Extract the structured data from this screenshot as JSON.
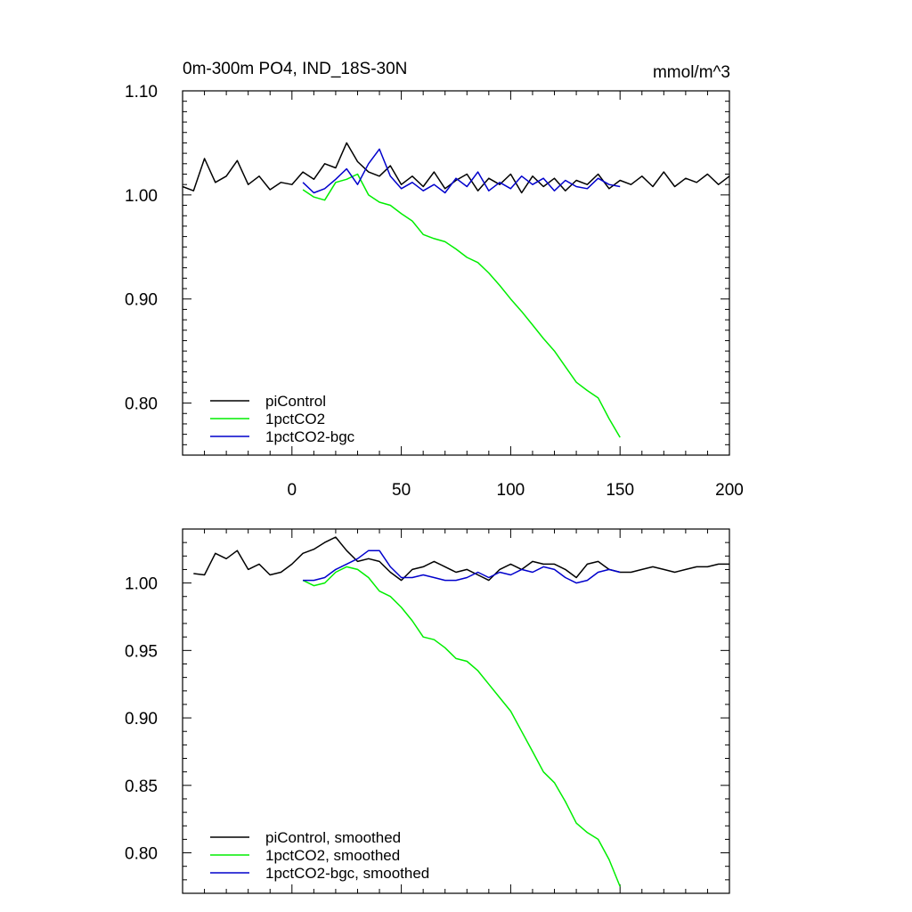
{
  "chart_data": [
    {
      "type": "line",
      "title": "0m-300m PO4, IND_18S-30N",
      "units": "mmol/m^3",
      "xlim": [
        -50,
        200
      ],
      "ylim": [
        0.75,
        1.1
      ],
      "xticks": [
        "0",
        "50",
        "100",
        "150",
        "200"
      ],
      "yticks": [
        "1.10",
        "1.00",
        "0.90",
        "0.80"
      ],
      "legend_position": "bottom-left",
      "series": [
        {
          "name": "piControl",
          "color": "#000000",
          "x": [
            -50,
            -45,
            -40,
            -35,
            -30,
            -25,
            -20,
            -15,
            -10,
            -5,
            0,
            5,
            10,
            15,
            20,
            25,
            30,
            35,
            40,
            45,
            50,
            55,
            60,
            65,
            70,
            75,
            80,
            85,
            90,
            95,
            100,
            105,
            110,
            115,
            120,
            125,
            130,
            135,
            140,
            145,
            150,
            155,
            160,
            165,
            170,
            175,
            180,
            185,
            190,
            195,
            200
          ],
          "values": [
            1.008,
            1.004,
            1.035,
            1.012,
            1.018,
            1.033,
            1.01,
            1.018,
            1.005,
            1.012,
            1.01,
            1.022,
            1.015,
            1.03,
            1.026,
            1.05,
            1.032,
            1.022,
            1.018,
            1.028,
            1.01,
            1.018,
            1.008,
            1.022,
            1.006,
            1.014,
            1.02,
            1.004,
            1.016,
            1.01,
            1.02,
            1.002,
            1.018,
            1.008,
            1.016,
            1.004,
            1.014,
            1.01,
            1.02,
            1.006,
            1.014,
            1.01,
            1.018,
            1.008,
            1.022,
            1.008,
            1.016,
            1.012,
            1.02,
            1.01,
            1.018
          ]
        },
        {
          "name": "1pctCO2",
          "color": "#00ee00",
          "x": [
            5,
            10,
            15,
            20,
            25,
            30,
            35,
            40,
            45,
            50,
            55,
            60,
            65,
            70,
            75,
            80,
            85,
            90,
            95,
            100,
            105,
            110,
            115,
            120,
            125,
            130,
            135,
            140,
            145,
            150
          ],
          "values": [
            1.005,
            0.998,
            0.995,
            1.012,
            1.015,
            1.02,
            1.0,
            0.993,
            0.99,
            0.982,
            0.975,
            0.962,
            0.958,
            0.955,
            0.948,
            0.94,
            0.935,
            0.925,
            0.913,
            0.9,
            0.888,
            0.875,
            0.862,
            0.85,
            0.835,
            0.82,
            0.812,
            0.805,
            0.785,
            0.767
          ]
        },
        {
          "name": "1pctCO2-bgc",
          "color": "#0000cc",
          "x": [
            5,
            10,
            15,
            20,
            25,
            30,
            35,
            40,
            45,
            50,
            55,
            60,
            65,
            70,
            75,
            80,
            85,
            90,
            95,
            100,
            105,
            110,
            115,
            120,
            125,
            130,
            135,
            140,
            145,
            150
          ],
          "values": [
            1.012,
            1.002,
            1.006,
            1.015,
            1.025,
            1.01,
            1.03,
            1.044,
            1.018,
            1.006,
            1.012,
            1.004,
            1.01,
            1.002,
            1.016,
            1.008,
            1.022,
            1.004,
            1.012,
            1.006,
            1.018,
            1.01,
            1.016,
            1.004,
            1.014,
            1.008,
            1.006,
            1.016,
            1.01,
            1.008
          ]
        }
      ]
    },
    {
      "type": "line",
      "xlim": [
        -50,
        200
      ],
      "ylim": [
        0.77,
        1.04
      ],
      "yticks": [
        "1.00",
        "0.95",
        "0.90",
        "0.85",
        "0.80"
      ],
      "legend_position": "bottom-left",
      "series": [
        {
          "name": "piControl, smoothed",
          "color": "#000000",
          "x": [
            -45,
            -40,
            -35,
            -30,
            -25,
            -20,
            -15,
            -10,
            -5,
            0,
            5,
            10,
            15,
            20,
            25,
            30,
            35,
            40,
            45,
            50,
            55,
            60,
            65,
            70,
            75,
            80,
            85,
            90,
            95,
            100,
            105,
            110,
            115,
            120,
            125,
            130,
            135,
            140,
            145,
            150,
            155,
            160,
            165,
            170,
            175,
            180,
            185,
            190,
            195,
            200
          ],
          "values": [
            1.007,
            1.006,
            1.022,
            1.018,
            1.024,
            1.01,
            1.014,
            1.006,
            1.008,
            1.014,
            1.022,
            1.025,
            1.03,
            1.034,
            1.024,
            1.016,
            1.018,
            1.016,
            1.008,
            1.002,
            1.01,
            1.012,
            1.016,
            1.012,
            1.008,
            1.01,
            1.006,
            1.002,
            1.01,
            1.014,
            1.01,
            1.016,
            1.014,
            1.014,
            1.01,
            1.004,
            1.014,
            1.016,
            1.01,
            1.008,
            1.008,
            1.01,
            1.012,
            1.01,
            1.008,
            1.01,
            1.012,
            1.012,
            1.014,
            1.014
          ]
        },
        {
          "name": "1pctCO2, smoothed",
          "color": "#00ee00",
          "x": [
            5,
            10,
            15,
            20,
            25,
            30,
            35,
            40,
            45,
            50,
            55,
            60,
            65,
            70,
            75,
            80,
            85,
            90,
            95,
            100,
            105,
            110,
            115,
            120,
            125,
            130,
            135,
            140,
            145,
            150
          ],
          "values": [
            1.002,
            0.998,
            1.0,
            1.008,
            1.012,
            1.01,
            1.004,
            0.994,
            0.99,
            0.982,
            0.972,
            0.96,
            0.958,
            0.952,
            0.944,
            0.942,
            0.935,
            0.925,
            0.915,
            0.905,
            0.89,
            0.875,
            0.86,
            0.852,
            0.838,
            0.822,
            0.815,
            0.81,
            0.795,
            0.775
          ]
        },
        {
          "name": "1pctCO2-bgc, smoothed",
          "color": "#0000cc",
          "x": [
            5,
            10,
            15,
            20,
            25,
            30,
            35,
            40,
            45,
            50,
            55,
            60,
            65,
            70,
            75,
            80,
            85,
            90,
            95,
            100,
            105,
            110,
            115,
            120,
            125,
            130,
            135,
            140,
            145,
            150
          ],
          "values": [
            1.002,
            1.002,
            1.004,
            1.01,
            1.014,
            1.018,
            1.024,
            1.024,
            1.012,
            1.004,
            1.004,
            1.006,
            1.004,
            1.002,
            1.002,
            1.004,
            1.008,
            1.004,
            1.008,
            1.006,
            1.01,
            1.008,
            1.012,
            1.01,
            1.004,
            1.0,
            1.002,
            1.008,
            1.01,
            1.008
          ]
        }
      ]
    }
  ]
}
